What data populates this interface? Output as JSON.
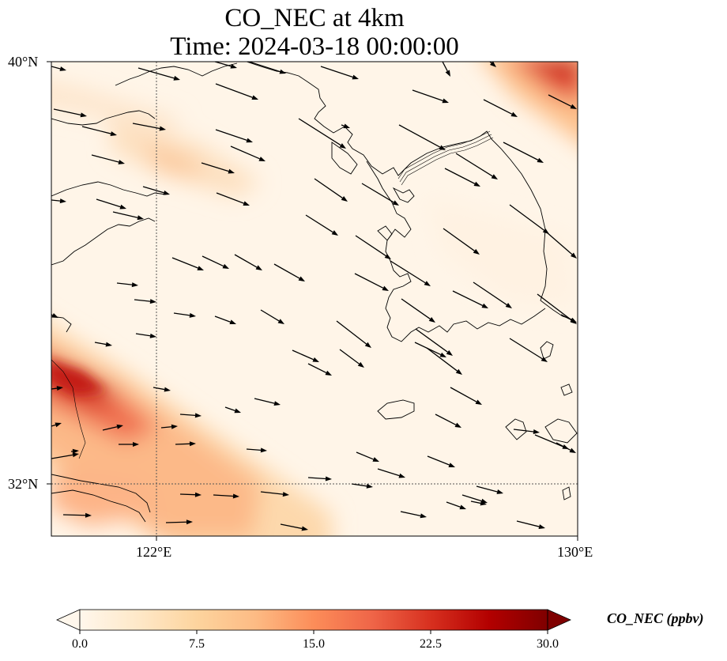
{
  "title": {
    "line1": "CO_NEC at 4km",
    "line2": "Time: 2024-03-18 00:00:00"
  },
  "axes": {
    "lat_labels": [
      "40°N",
      "32°N"
    ],
    "lon_labels": [
      "122°E",
      "130°E"
    ]
  },
  "colorbar": {
    "label": "CO_NEC (ppbv)",
    "ticks": [
      "0.0",
      "7.5",
      "15.0",
      "22.5",
      "30.0"
    ],
    "min": 0,
    "max": 30,
    "extend": "both",
    "colormap": "OrRd",
    "colors": [
      "#fff7ec",
      "#fee8c8",
      "#fdd49e",
      "#fdbb84",
      "#fc8d59",
      "#ef6548",
      "#d7301f",
      "#b30000",
      "#7f0000"
    ]
  },
  "chart_data": {
    "type": "map",
    "variable": "CO_NEC",
    "units": "ppbv",
    "time": "2024-03-18 00:00:00",
    "level": "4km",
    "lon_range": [
      120,
      130
    ],
    "lat_range": [
      31,
      40
    ],
    "gridlines": {
      "lon": [
        122
      ],
      "lat": [
        32
      ]
    },
    "concentration_bands": [
      {
        "region": "southwest corner near 120.3°E 33.5°N",
        "value_ppbv": 20
      },
      {
        "region": "northeast corner near 129°E 40°N",
        "value_ppbv": 17
      },
      {
        "region": "band near 122°E 37.5°N",
        "value_ppbv": 8
      },
      {
        "region": "Yangtze delta near 120.8°E 31.8°N",
        "value_ppbv": 12
      },
      {
        "region": "background over Yellow Sea and Korea",
        "value_ppbv": 2
      }
    ],
    "wind_vectors": "predominantly from west-northwest, pointing east-southeast",
    "overlay": "coastlines and country borders"
  }
}
